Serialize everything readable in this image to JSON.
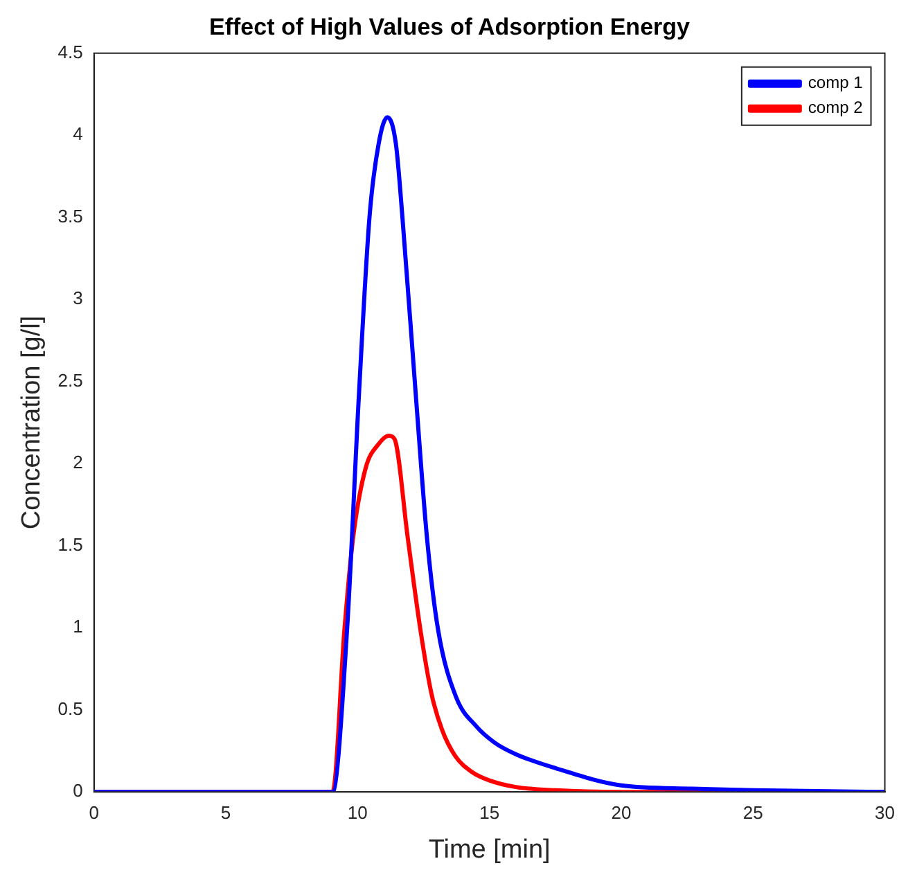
{
  "chart_data": {
    "type": "line",
    "title": "Effect of High Values of Adsorption Energy",
    "xlabel": "Time [min]",
    "ylabel": "Concentration [g/l]",
    "xlim": [
      0,
      30
    ],
    "xticks": [
      0,
      5,
      10,
      15,
      20,
      25,
      30
    ],
    "ylim": [
      0,
      4.5
    ],
    "yticks": [
      0,
      0.5,
      1,
      1.5,
      2,
      2.5,
      3,
      3.5,
      4,
      4.5
    ],
    "grid": false,
    "legend": "top right",
    "marker": "none",
    "line_style": "solid",
    "series": [
      {
        "name": "comp 1",
        "color": "#0000ff",
        "x": [
          0,
          5,
          9.05,
          9.6,
          10.04,
          10.45,
          10.8,
          11.13,
          11.45,
          11.7,
          12.22,
          12.63,
          13.05,
          13.73,
          14.5,
          15.2,
          16,
          17.4,
          20,
          22.7,
          25,
          30
        ],
        "values": [
          0,
          0,
          0,
          0.99,
          2.39,
          3.5,
          3.95,
          4.11,
          3.95,
          3.5,
          2.39,
          1.55,
          0.99,
          0.58,
          0.4,
          0.3,
          0.23,
          0.15,
          0.04,
          0.02,
          0.01,
          0
        ]
      },
      {
        "name": "comp 2",
        "color": "#ff0000",
        "x": [
          0,
          5,
          9.05,
          9.5,
          9.83,
          10.3,
          10.8,
          11.18,
          11.4,
          11.9,
          12.38,
          12.8,
          13.2,
          13.7,
          14.35,
          15,
          16,
          17.5,
          20,
          30
        ],
        "values": [
          0,
          0,
          0,
          0.99,
          1.55,
          1.97,
          2.12,
          2.17,
          2.15,
          1.55,
          0.99,
          0.6,
          0.38,
          0.22,
          0.12,
          0.07,
          0.03,
          0.01,
          0,
          0
        ]
      }
    ]
  }
}
